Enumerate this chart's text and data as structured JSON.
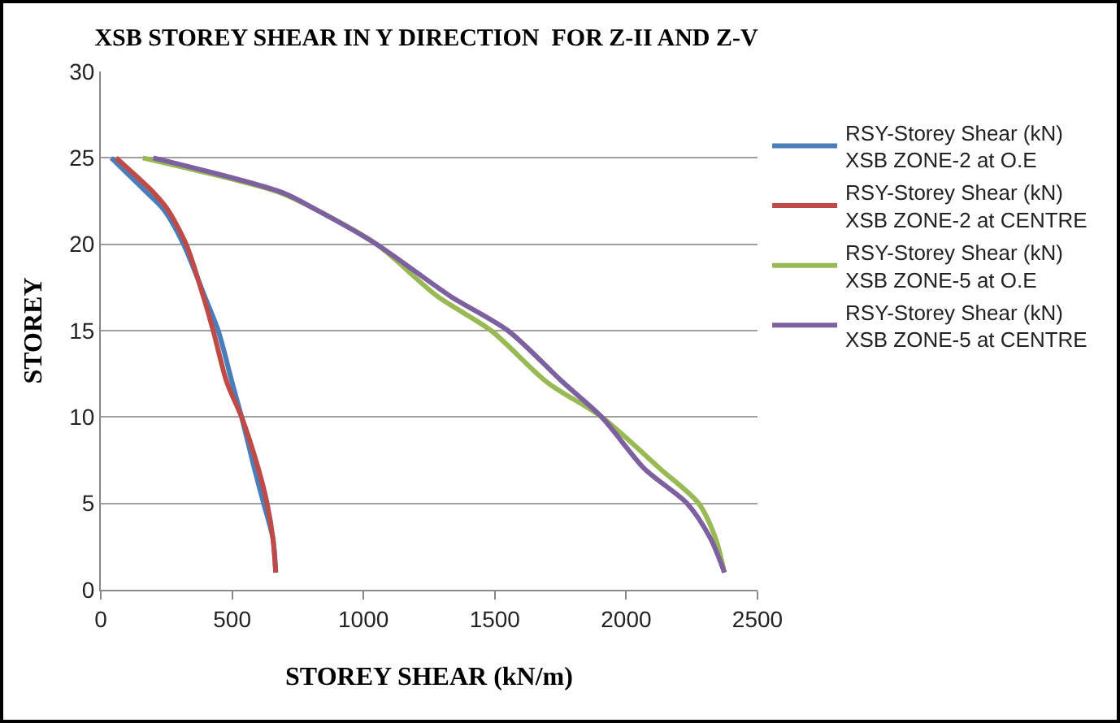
{
  "chart_data": {
    "type": "line",
    "title": "XSB STOREY SHEAR IN Y DIRECTION  FOR Z-II AND Z-V",
    "xlabel": "STOREY SHEAR (kN/m)",
    "ylabel": "STOREY",
    "xlim": [
      0,
      2500
    ],
    "xticks": [
      0,
      500,
      1000,
      1500,
      2000,
      2500
    ],
    "ylim": [
      0,
      30
    ],
    "yticks": [
      0,
      5,
      10,
      15,
      20,
      25,
      30
    ],
    "grid": "y",
    "legend": "right",
    "marker": "none",
    "line_style": "solid",
    "series": [
      {
        "name": "RSY-Storey Shear (kN) XSB ZONE-2 at O.E",
        "color": "#4a7ebb",
        "x": [
          666,
          655,
          620,
          585,
          536,
          500,
          447,
          395,
          315,
          240,
          175,
          40
        ],
        "values": [
          1,
          3,
          5,
          7,
          10,
          12,
          15,
          17,
          20,
          22,
          23,
          25
        ]
      },
      {
        "name": "RSY-Storey Shear (kN) XSB ZONE-2 at CENTRE",
        "color": "#be4b48",
        "x": [
          666,
          655,
          633,
          600,
          536,
          480,
          428,
          390,
          325,
          255,
          200,
          58
        ],
        "values": [
          1,
          3,
          5,
          7,
          10,
          12,
          15,
          17,
          20,
          22,
          23,
          25
        ]
      },
      {
        "name": "RSY-Storey Shear (kN) XSB ZONE-5 at O.E",
        "color": "#98b954",
        "x": [
          2374,
          2340,
          2276,
          2130,
          1907,
          1700,
          1486,
          1280,
          1050,
          820,
          680,
          160
        ],
        "values": [
          1,
          3,
          5,
          7,
          10,
          12,
          15,
          17,
          20,
          22,
          23,
          25
        ]
      },
      {
        "name": "RSY-Storey Shear (kN) XSB ZONE-5 at CENTRE",
        "color": "#7d60a0",
        "x": [
          2374,
          2320,
          2232,
          2070,
          1907,
          1760,
          1550,
          1330,
          1050,
          820,
          690,
          200
        ],
        "values": [
          1,
          3,
          5,
          7,
          10,
          12,
          15,
          17,
          20,
          22,
          23,
          25
        ]
      }
    ]
  }
}
